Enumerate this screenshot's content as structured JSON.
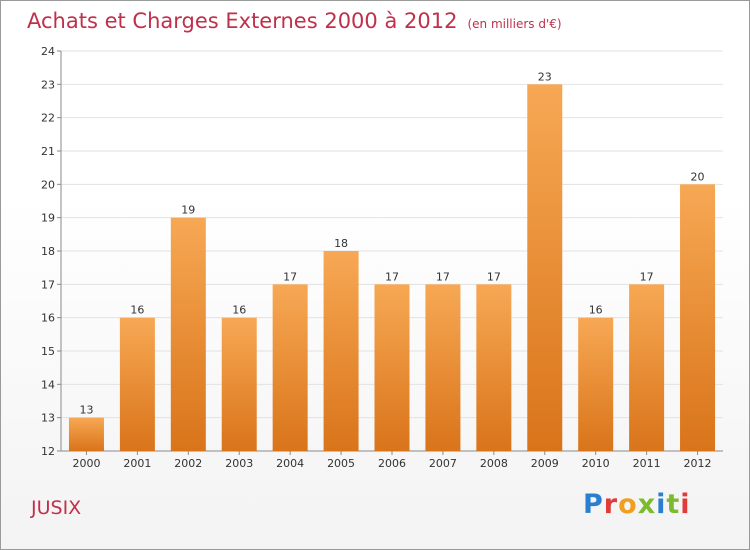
{
  "title": "Achats et Charges Externes 2000 à 2012",
  "subtitle": "(en milliers d'€)",
  "place": "JUSIX",
  "brand": {
    "name": "Proxiti",
    "letters": [
      "P",
      "r",
      "o",
      "x",
      "i",
      "t",
      "i"
    ]
  },
  "colors": {
    "bar_top": "#f7a854",
    "bar_bottom": "#d9741a",
    "title": "#c0304a",
    "axis": "#8a8a8a",
    "grid": "#e2e2e2"
  },
  "chart_data": {
    "type": "bar",
    "categories": [
      "2000",
      "2001",
      "2002",
      "2003",
      "2004",
      "2005",
      "2006",
      "2007",
      "2008",
      "2009",
      "2010",
      "2011",
      "2012"
    ],
    "values": [
      13,
      16,
      19,
      16,
      17,
      18,
      17,
      17,
      17,
      23,
      16,
      17,
      20
    ],
    "title": "Achats et Charges Externes 2000 à 2012",
    "xlabel": "",
    "ylabel": "",
    "ylim": [
      12,
      24
    ],
    "yticks": [
      12,
      13,
      14,
      15,
      16,
      17,
      18,
      19,
      20,
      21,
      22,
      23,
      24
    ],
    "grid": true,
    "data_labels": true
  }
}
